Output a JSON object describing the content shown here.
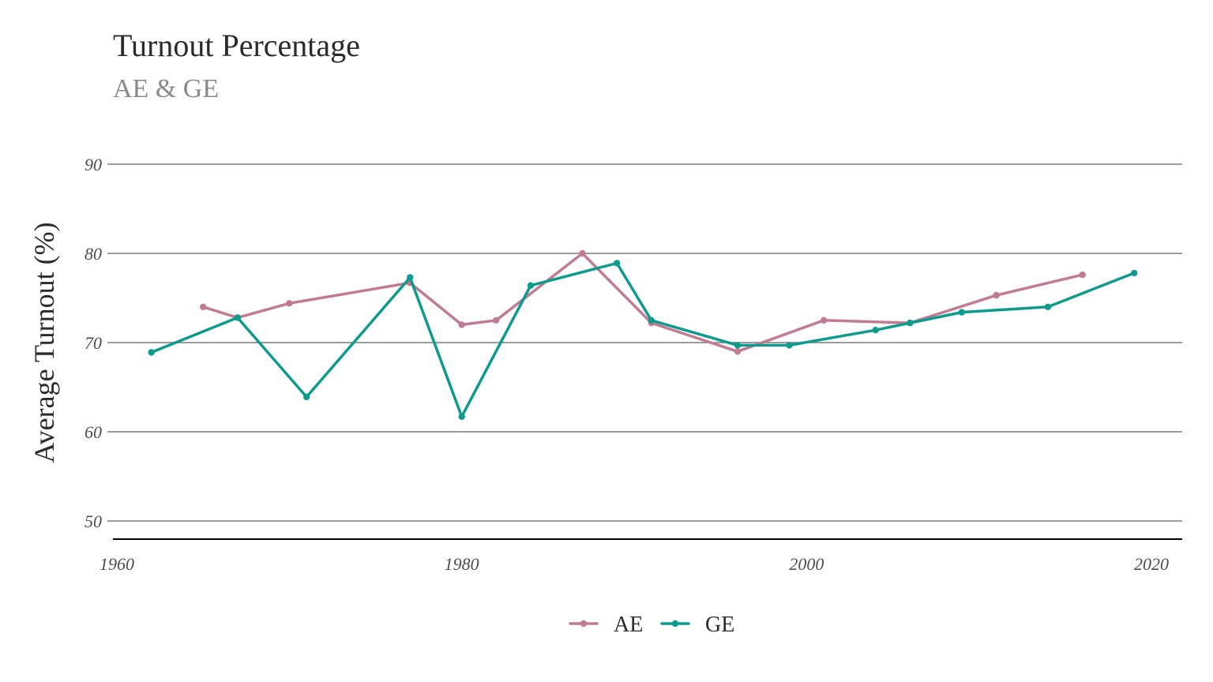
{
  "chart_data": {
    "type": "line",
    "title": "Turnout Percentage",
    "subtitle": "AE & GE",
    "xlabel": "",
    "ylabel": "Average Turnout (%)",
    "xlim": [
      1960,
      2022
    ],
    "ylim": [
      48,
      94
    ],
    "x_ticks": [
      1960,
      1980,
      2000,
      2020
    ],
    "y_ticks": [
      50,
      60,
      70,
      80,
      90
    ],
    "grid": "horizontal",
    "legend_position": "bottom",
    "series": [
      {
        "name": "AE",
        "color": "#c27c92",
        "points": [
          {
            "x": 1965,
            "y": 74.0
          },
          {
            "x": 1967,
            "y": 72.8
          },
          {
            "x": 1970,
            "y": 74.4
          },
          {
            "x": 1977,
            "y": 76.7
          },
          {
            "x": 1980,
            "y": 72.0
          },
          {
            "x": 1982,
            "y": 72.5
          },
          {
            "x": 1987,
            "y": 80.0
          },
          {
            "x": 1991,
            "y": 72.2
          },
          {
            "x": 1996,
            "y": 69.0
          },
          {
            "x": 2001,
            "y": 72.5
          },
          {
            "x": 2006,
            "y": 72.2
          },
          {
            "x": 2011,
            "y": 75.3
          },
          {
            "x": 2016,
            "y": 77.6
          }
        ]
      },
      {
        "name": "GE",
        "color": "#0f9a8e",
        "points": [
          {
            "x": 1962,
            "y": 68.9
          },
          {
            "x": 1967,
            "y": 72.8
          },
          {
            "x": 1971,
            "y": 63.9
          },
          {
            "x": 1977,
            "y": 77.3
          },
          {
            "x": 1980,
            "y": 61.7
          },
          {
            "x": 1984,
            "y": 76.4
          },
          {
            "x": 1989,
            "y": 78.9
          },
          {
            "x": 1991,
            "y": 72.5
          },
          {
            "x": 1996,
            "y": 69.7
          },
          {
            "x": 1999,
            "y": 69.7
          },
          {
            "x": 2004,
            "y": 71.4
          },
          {
            "x": 2006,
            "y": 72.2
          },
          {
            "x": 2009,
            "y": 73.4
          },
          {
            "x": 2014,
            "y": 74.0
          },
          {
            "x": 2019,
            "y": 77.8
          }
        ]
      }
    ]
  }
}
